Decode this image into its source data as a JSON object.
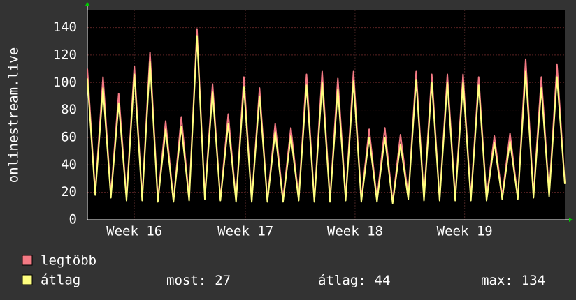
{
  "chart_data": {
    "type": "line",
    "y_label": "onlinestream.live",
    "x": [
      0,
      0.5,
      1,
      1.5,
      2,
      2.5,
      3,
      3.5,
      4,
      4.5,
      5,
      5.5,
      6,
      6.5,
      7,
      7.5,
      8,
      8.5,
      9,
      9.5,
      10,
      10.5,
      11,
      11.5,
      12,
      12.5,
      13,
      13.5,
      14,
      14.5,
      15,
      15.5,
      16,
      16.5,
      17,
      17.5,
      18,
      18.5,
      19,
      19.5,
      20,
      20.5,
      21,
      21.5,
      22,
      22.5,
      23,
      23.5,
      24,
      24.5,
      25,
      25.5,
      26,
      26.5,
      27,
      27.5,
      28,
      28.5,
      29,
      29.5,
      30,
      30.5
    ],
    "series": [
      {
        "name": "legtöbb",
        "color": "#f47a84",
        "values": [
          110,
          20,
          104,
          18,
          92,
          16,
          112,
          16,
          122,
          15,
          72,
          14,
          75,
          16,
          139,
          17,
          99,
          15,
          77,
          14,
          104,
          14,
          96,
          14,
          70,
          15,
          67,
          16,
          106,
          14,
          108,
          15,
          103,
          16,
          108,
          15,
          66,
          15,
          67,
          13,
          62,
          17,
          108,
          16,
          106,
          15,
          106,
          16,
          106,
          16,
          104,
          16,
          61,
          17,
          63,
          16,
          117,
          18,
          104,
          19,
          113,
          27
        ]
      },
      {
        "name": "átlag",
        "color": "#ffff80",
        "values": [
          103,
          18,
          96,
          16,
          85,
          14,
          106,
          14,
          115,
          13,
          66,
          13,
          68,
          14,
          134,
          15,
          93,
          14,
          70,
          13,
          97,
          13,
          90,
          13,
          64,
          13,
          61,
          14,
          98,
          13,
          100,
          13,
          95,
          14,
          101,
          13,
          60,
          13,
          60,
          12,
          55,
          15,
          102,
          14,
          100,
          14,
          100,
          14,
          100,
          14,
          98,
          14,
          56,
          15,
          57,
          15,
          108,
          16,
          96,
          17,
          104,
          26
        ]
      }
    ],
    "xlim": [
      0,
      30.5
    ],
    "xticks": [
      {
        "value": 3.0,
        "label": "Week 16"
      },
      {
        "value": 10.1,
        "label": "Week 17"
      },
      {
        "value": 17.1,
        "label": "Week 18"
      },
      {
        "value": 24.1,
        "label": "Week 19"
      }
    ],
    "ylim": [
      0,
      153
    ],
    "yticks": [
      0,
      20,
      40,
      60,
      80,
      100,
      120,
      140
    ],
    "grid": true,
    "stats": [
      {
        "label": "most:",
        "value": 27
      },
      {
        "label": "átlag:",
        "value": 44
      },
      {
        "label": "max:",
        "value": 134
      }
    ]
  }
}
